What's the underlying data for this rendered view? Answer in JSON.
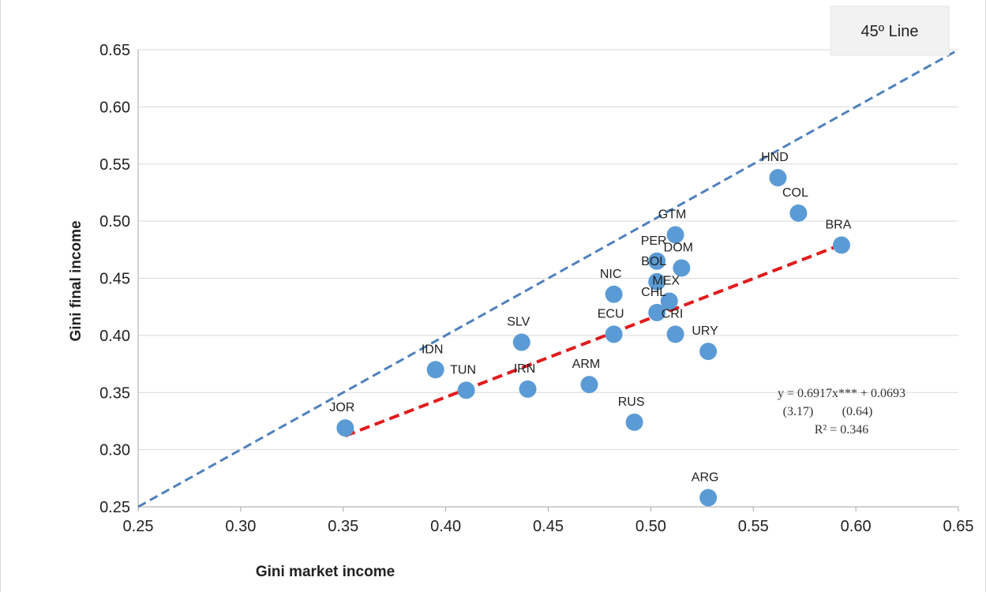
{
  "chart_data": {
    "type": "scatter",
    "xlabel": "Gini market income",
    "ylabel": "Gini final income",
    "xlim": [
      0.25,
      0.65
    ],
    "ylim": [
      0.25,
      0.65
    ],
    "x_ticks": [
      "0.25",
      "0.30",
      "0.35",
      "0.40",
      "0.45",
      "0.50",
      "0.55",
      "0.60",
      "0.65"
    ],
    "y_ticks": [
      "0.25",
      "0.30",
      "0.35",
      "0.40",
      "0.45",
      "0.50",
      "0.55",
      "0.60",
      "0.65"
    ],
    "grid": "horizontal",
    "colors": {
      "points": "#5b9bd5",
      "diagonal": "#4f81bd",
      "fit": "#e31a1c",
      "grid": "#d9d9d9"
    },
    "legend_label": "45º Line",
    "points": [
      {
        "label": "JOR",
        "x": 0.351,
        "y": 0.319
      },
      {
        "label": "IDN",
        "x": 0.395,
        "y": 0.37
      },
      {
        "label": "TUN",
        "x": 0.41,
        "y": 0.352
      },
      {
        "label": "SLV",
        "x": 0.437,
        "y": 0.394
      },
      {
        "label": "IRN",
        "x": 0.44,
        "y": 0.353
      },
      {
        "label": "ARM",
        "x": 0.47,
        "y": 0.357
      },
      {
        "label": "NIC",
        "x": 0.482,
        "y": 0.436
      },
      {
        "label": "ECU",
        "x": 0.482,
        "y": 0.401
      },
      {
        "label": "RUS",
        "x": 0.492,
        "y": 0.324
      },
      {
        "label": "PER",
        "x": 0.503,
        "y": 0.465
      },
      {
        "label": "BOL",
        "x": 0.503,
        "y": 0.447
      },
      {
        "label": "CHL",
        "x": 0.503,
        "y": 0.42
      },
      {
        "label": "MEX",
        "x": 0.509,
        "y": 0.43
      },
      {
        "label": "GTM",
        "x": 0.512,
        "y": 0.488
      },
      {
        "label": "CRI",
        "x": 0.512,
        "y": 0.401
      },
      {
        "label": "DOM",
        "x": 0.515,
        "y": 0.459
      },
      {
        "label": "URY",
        "x": 0.528,
        "y": 0.386
      },
      {
        "label": "ARG",
        "x": 0.528,
        "y": 0.258
      },
      {
        "label": "HND",
        "x": 0.562,
        "y": 0.538
      },
      {
        "label": "COL",
        "x": 0.572,
        "y": 0.507
      },
      {
        "label": "BRA",
        "x": 0.593,
        "y": 0.479
      }
    ],
    "diagonal_line": {
      "x": [
        0.25,
        0.65
      ],
      "y": [
        0.25,
        0.65
      ]
    },
    "fit_line": {
      "x": [
        0.351,
        0.593
      ],
      "slope": 0.6917,
      "intercept": 0.0693
    },
    "annotation": {
      "equation": "y = 0.6917x*** + 0.0693",
      "tstats": [
        "(3.17)",
        "(0.64)"
      ],
      "r2": "R² = 0.346"
    }
  }
}
